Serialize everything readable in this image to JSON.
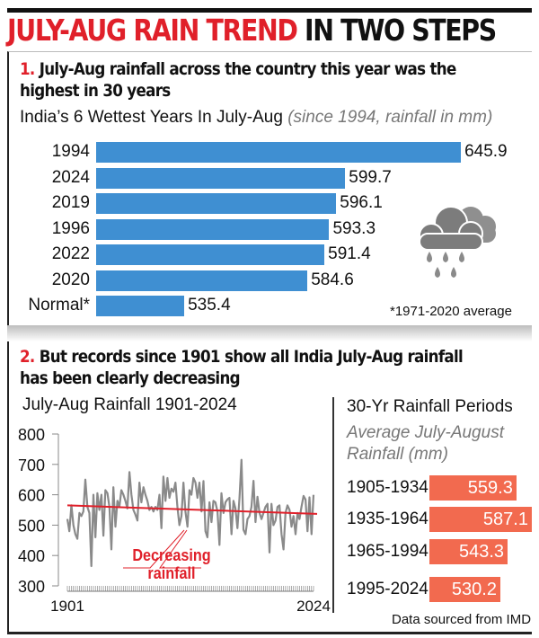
{
  "title": {
    "red": "JULY-AUG RAIN TREND",
    "black": "IN TWO STEPS"
  },
  "section1": {
    "number": "1.",
    "heading_line1": "July-Aug rainfall across the country this year was the",
    "heading_line2": "highest in 30 years",
    "footnote": "*1971-2020 average",
    "icon": "rain-cloud-icon"
  },
  "section2": {
    "number": "2.",
    "heading_line1": "But records since 1901 show all India July-Aug rainfall",
    "heading_line2": "has been clearly decreasing",
    "annotation_line1": "Decreasing",
    "annotation_line2": "rainfall",
    "source": "Data sourced from IMD"
  },
  "colors": {
    "accent_red": "#e0202a",
    "bar_blue": "#3f8fd2",
    "bar_orange": "#f26a4f",
    "line_grey": "#8a8a8a"
  },
  "chart_data": [
    {
      "type": "bar",
      "orientation": "horizontal",
      "title": "India’s 6 Wettest Years In July-Aug",
      "subtitle": "(since 1994, rainfall in mm)",
      "categories": [
        "1994",
        "2024",
        "2019",
        "1996",
        "2022",
        "2020",
        "Normal*"
      ],
      "values": [
        645.9,
        599.7,
        596.1,
        593.3,
        591.4,
        584.6,
        535.4
      ],
      "value_labels": [
        "645.9",
        "599.7",
        "596.1",
        "593.3",
        "591.4",
        "584.6",
        "535.4"
      ]
    },
    {
      "type": "line",
      "title": "July-Aug Rainfall 1901-2024",
      "xlim": [
        1901,
        2024
      ],
      "ylim": [
        300,
        800
      ],
      "yticks": [
        "800",
        "700",
        "600",
        "500",
        "400",
        "300"
      ],
      "xtick_labels": [
        "1901",
        "2024"
      ],
      "x_start": 1901,
      "values": [
        520,
        480,
        565,
        500,
        470,
        455,
        540,
        530,
        545,
        650,
        560,
        540,
        365,
        600,
        460,
        605,
        550,
        600,
        465,
        615,
        605,
        560,
        420,
        625,
        495,
        580,
        560,
        615,
        600,
        580,
        555,
        675,
        600,
        550,
        535,
        515,
        640,
        575,
        625,
        600,
        580,
        550,
        560,
        545,
        560,
        550,
        600,
        490,
        660,
        580,
        655,
        590,
        620,
        610,
        640,
        560,
        500,
        530,
        640,
        545,
        495,
        615,
        600,
        655,
        640,
        590,
        640,
        545,
        645,
        480,
        460,
        575,
        510,
        580,
        575,
        545,
        435,
        605,
        540,
        575,
        585,
        590,
        470,
        580,
        555,
        490,
        590,
        715,
        485,
        470,
        520,
        530,
        560,
        645.9,
        510,
        593.3,
        540,
        520,
        540,
        560,
        570,
        410,
        570,
        500,
        515,
        560,
        565,
        470,
        420,
        540,
        565,
        550,
        495,
        530,
        470,
        540,
        520,
        560,
        596.1,
        584.6,
        480,
        591.4,
        470,
        599.7
      ],
      "trend": {
        "start": 565,
        "end": 537
      }
    },
    {
      "type": "bar",
      "orientation": "horizontal",
      "title": "30-Yr Rainfall Periods",
      "subtitle_line1": "Average July-August",
      "subtitle_line2": "Rainfall (mm)",
      "categories": [
        "1905-1934",
        "1935-1964",
        "1965-1994",
        "1995-2024"
      ],
      "values": [
        559.3,
        587.1,
        543.3,
        530.2
      ],
      "value_labels": [
        "559.3",
        "587.1",
        "543.3",
        "530.2"
      ]
    }
  ]
}
